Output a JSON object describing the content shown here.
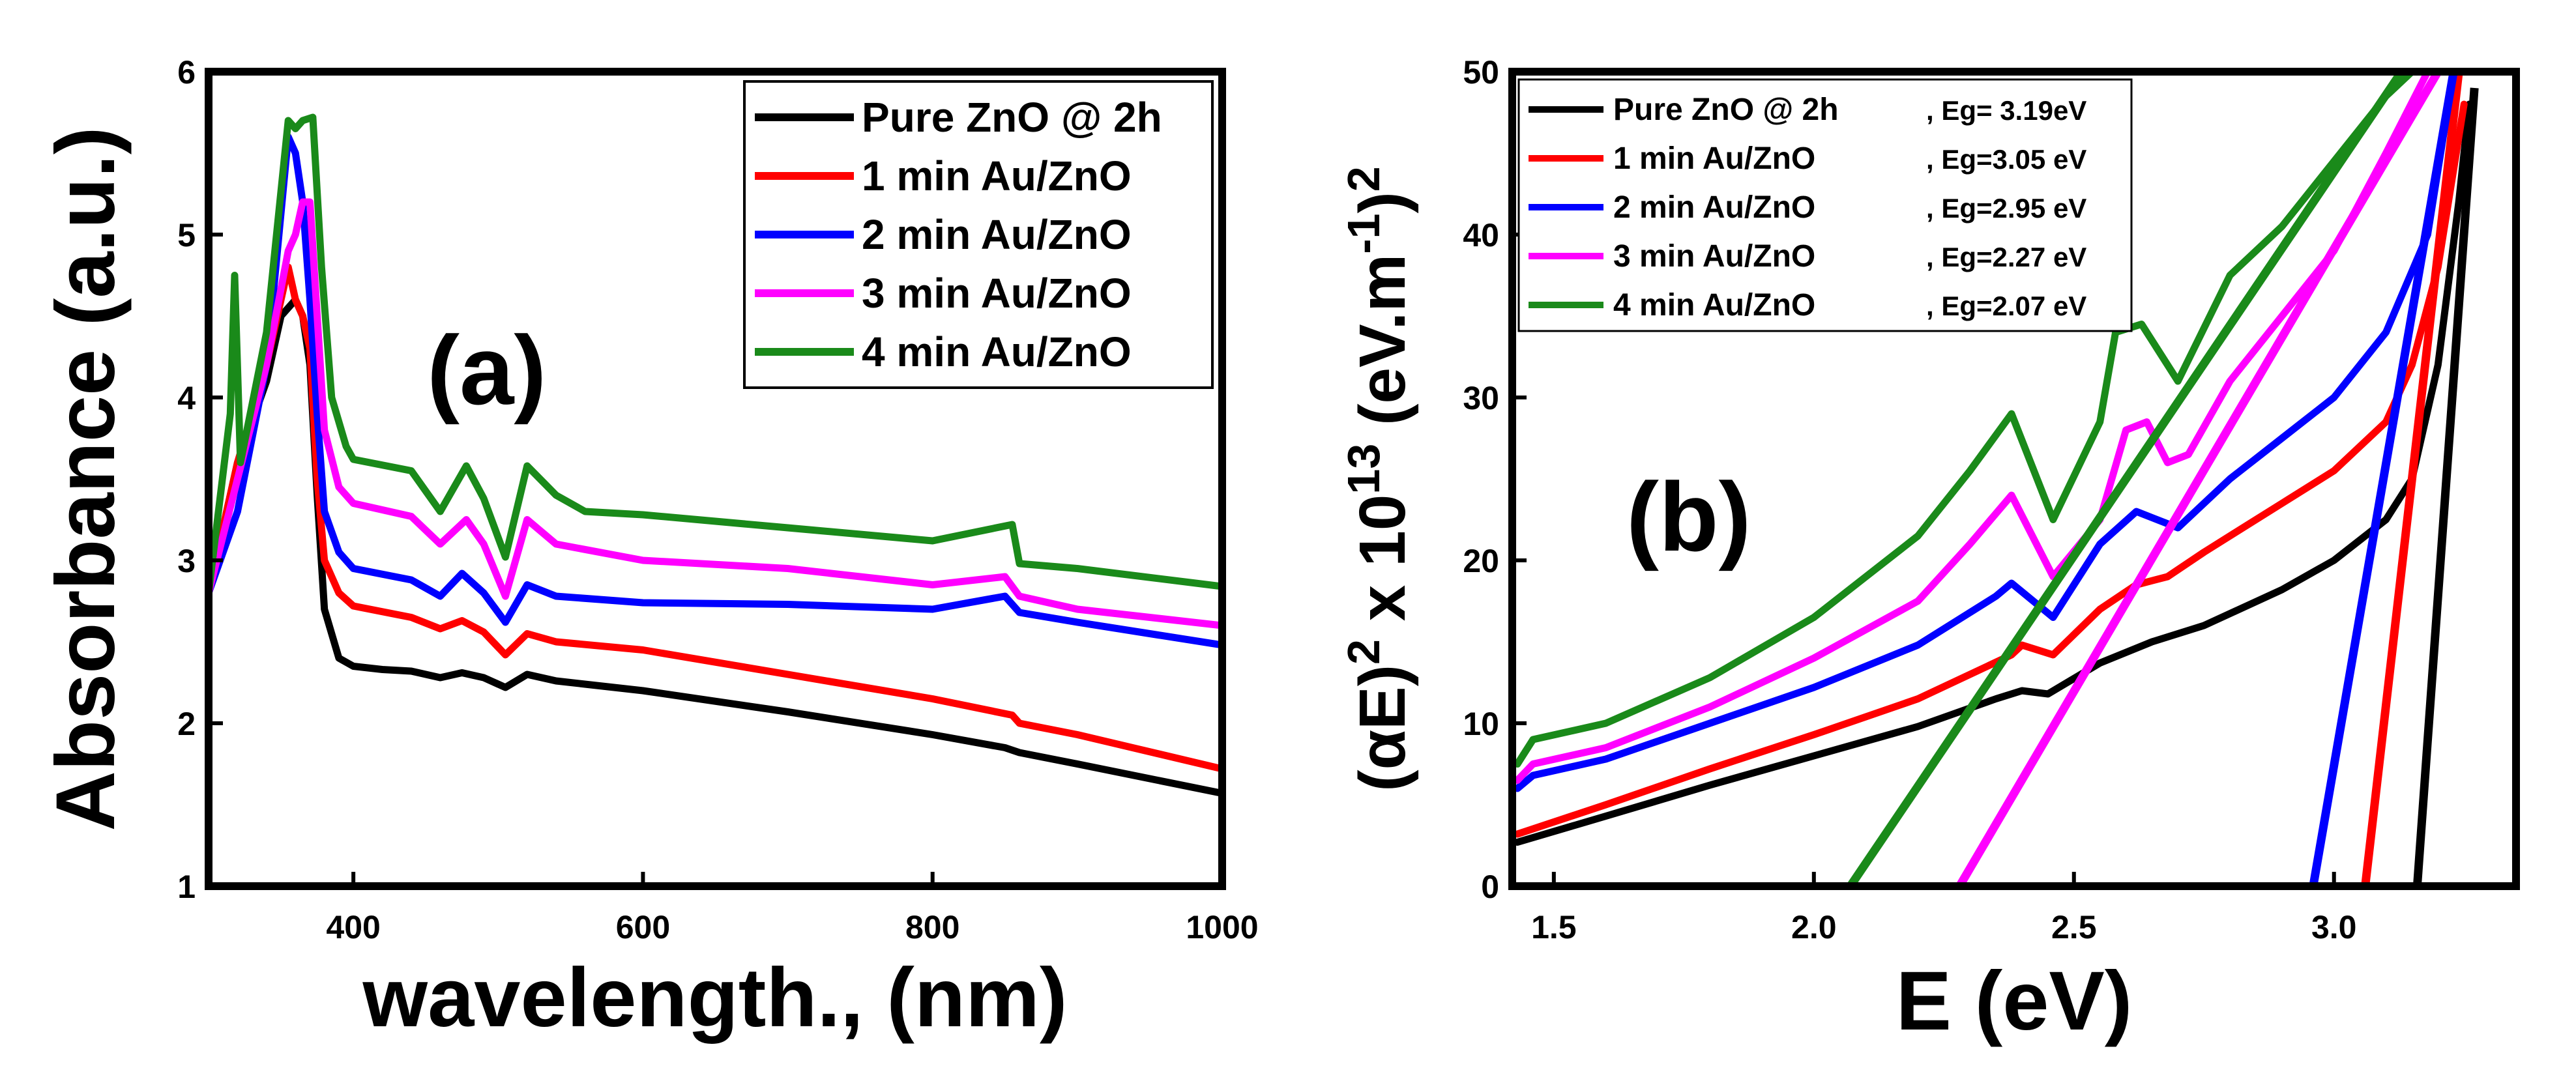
{
  "chart_data": [
    {
      "type": "line",
      "panel_label": "(a)",
      "xlabel": "wavelength., (nm)",
      "ylabel": "Absorbance (a.u.)",
      "xlim": [
        300,
        1000
      ],
      "ylim": [
        1,
        6
      ],
      "xticks": [
        "400",
        "600",
        "800",
        "1000"
      ],
      "yticks": [
        "1",
        "2",
        "3",
        "4",
        "5",
        "6"
      ],
      "legend_position": "top-right",
      "series": [
        {
          "name": "Pure ZnO @ 2h",
          "color": "#000000",
          "points": [
            [
              300,
              2.8
            ],
            [
              320,
              3.6
            ],
            [
              340,
              4.1
            ],
            [
              350,
              4.5
            ],
            [
              360,
              4.6
            ],
            [
              365,
              4.5
            ],
            [
              370,
              4.2
            ],
            [
              375,
              3.4
            ],
            [
              380,
              2.7
            ],
            [
              390,
              2.4
            ],
            [
              400,
              2.35
            ],
            [
              420,
              2.33
            ],
            [
              440,
              2.32
            ],
            [
              460,
              2.28
            ],
            [
              475,
              2.31
            ],
            [
              490,
              2.28
            ],
            [
              505,
              2.22
            ],
            [
              520,
              2.3
            ],
            [
              540,
              2.26
            ],
            [
              600,
              2.2
            ],
            [
              700,
              2.07
            ],
            [
              800,
              1.93
            ],
            [
              850,
              1.85
            ],
            [
              860,
              1.82
            ],
            [
              900,
              1.75
            ],
            [
              1000,
              1.57
            ]
          ]
        },
        {
          "name": "1 min  Au/ZnO",
          "color": "#ff0000",
          "points": [
            [
              300,
              2.8
            ],
            [
              320,
              3.6
            ],
            [
              340,
              4.2
            ],
            [
              355,
              4.8
            ],
            [
              360,
              4.6
            ],
            [
              365,
              4.5
            ],
            [
              370,
              4.3
            ],
            [
              375,
              3.5
            ],
            [
              380,
              3.0
            ],
            [
              390,
              2.8
            ],
            [
              400,
              2.72
            ],
            [
              440,
              2.65
            ],
            [
              460,
              2.58
            ],
            [
              475,
              2.63
            ],
            [
              490,
              2.56
            ],
            [
              505,
              2.42
            ],
            [
              520,
              2.55
            ],
            [
              540,
              2.5
            ],
            [
              600,
              2.45
            ],
            [
              700,
              2.3
            ],
            [
              800,
              2.15
            ],
            [
              855,
              2.05
            ],
            [
              860,
              2.0
            ],
            [
              900,
              1.93
            ],
            [
              1000,
              1.72
            ]
          ]
        },
        {
          "name": "2 min  Au/ZnO",
          "color": "#0000ff",
          "points": [
            [
              300,
              2.8
            ],
            [
              320,
              3.3
            ],
            [
              340,
              4.2
            ],
            [
              355,
              5.6
            ],
            [
              360,
              5.5
            ],
            [
              365,
              5.2
            ],
            [
              370,
              4.6
            ],
            [
              375,
              3.9
            ],
            [
              380,
              3.3
            ],
            [
              390,
              3.05
            ],
            [
              400,
              2.95
            ],
            [
              440,
              2.88
            ],
            [
              460,
              2.78
            ],
            [
              475,
              2.92
            ],
            [
              490,
              2.8
            ],
            [
              505,
              2.62
            ],
            [
              520,
              2.85
            ],
            [
              540,
              2.78
            ],
            [
              600,
              2.74
            ],
            [
              700,
              2.73
            ],
            [
              800,
              2.7
            ],
            [
              850,
              2.78
            ],
            [
              860,
              2.68
            ],
            [
              900,
              2.62
            ],
            [
              1000,
              2.48
            ]
          ]
        },
        {
          "name": "3 min  Au/ZnO",
          "color": "#ff00ff",
          "points": [
            [
              300,
              2.8
            ],
            [
              320,
              3.5
            ],
            [
              340,
              4.2
            ],
            [
              355,
              4.9
            ],
            [
              360,
              5.0
            ],
            [
              365,
              5.2
            ],
            [
              370,
              5.2
            ],
            [
              375,
              4.5
            ],
            [
              380,
              3.8
            ],
            [
              390,
              3.45
            ],
            [
              400,
              3.35
            ],
            [
              440,
              3.27
            ],
            [
              460,
              3.1
            ],
            [
              478,
              3.25
            ],
            [
              490,
              3.1
            ],
            [
              505,
              2.78
            ],
            [
              520,
              3.25
            ],
            [
              540,
              3.1
            ],
            [
              600,
              3.0
            ],
            [
              700,
              2.95
            ],
            [
              800,
              2.85
            ],
            [
              850,
              2.9
            ],
            [
              860,
              2.78
            ],
            [
              900,
              2.7
            ],
            [
              1000,
              2.6
            ]
          ]
        },
        {
          "name": "4 min  Au/ZnO",
          "color": "#1a8a1a",
          "points": [
            [
              300,
              2.8
            ],
            [
              315,
              3.9
            ],
            [
              318,
              4.75
            ],
            [
              322,
              3.6
            ],
            [
              340,
              4.4
            ],
            [
              355,
              5.7
            ],
            [
              360,
              5.65
            ],
            [
              365,
              5.7
            ],
            [
              372,
              5.72
            ],
            [
              378,
              4.8
            ],
            [
              385,
              4.0
            ],
            [
              395,
              3.7
            ],
            [
              400,
              3.62
            ],
            [
              440,
              3.55
            ],
            [
              460,
              3.3
            ],
            [
              478,
              3.58
            ],
            [
              490,
              3.38
            ],
            [
              505,
              3.02
            ],
            [
              520,
              3.58
            ],
            [
              540,
              3.4
            ],
            [
              560,
              3.3
            ],
            [
              600,
              3.28
            ],
            [
              700,
              3.2
            ],
            [
              800,
              3.12
            ],
            [
              855,
              3.22
            ],
            [
              860,
              2.98
            ],
            [
              900,
              2.95
            ],
            [
              1000,
              2.84
            ]
          ]
        }
      ]
    },
    {
      "type": "line",
      "panel_label": "(b)",
      "xlabel": "E (eV)",
      "ylabel": "(αE)2 x 1013 (eV.m-1)2",
      "xlim": [
        1.42,
        3.35
      ],
      "ylim": [
        0,
        50
      ],
      "xticks": [
        "1.5",
        "2.0",
        "2.5",
        "3.0"
      ],
      "yticks": [
        "0",
        "10",
        "20",
        "30",
        "40",
        "50"
      ],
      "legend_position": "top-left",
      "series": [
        {
          "name": "Pure ZnO @ 2h",
          "eg_label": ", Eg= 3.19eV",
          "color": "#000000",
          "points": [
            [
              1.43,
              2.7
            ],
            [
              1.6,
              4.3
            ],
            [
              1.8,
              6.2
            ],
            [
              2.0,
              8.0
            ],
            [
              2.2,
              9.8
            ],
            [
              2.35,
              11.5
            ],
            [
              2.4,
              12.0
            ],
            [
              2.45,
              11.8
            ],
            [
              2.55,
              13.7
            ],
            [
              2.65,
              15.0
            ],
            [
              2.75,
              16.0
            ],
            [
              2.9,
              18.2
            ],
            [
              3.0,
              20.0
            ],
            [
              3.1,
              22.5
            ],
            [
              3.15,
              25.0
            ],
            [
              3.2,
              32.0
            ],
            [
              3.24,
              42.0
            ],
            [
              3.26,
              48.0
            ]
          ],
          "tangent": [
            [
              3.16,
              0
            ],
            [
              3.27,
              49
            ]
          ]
        },
        {
          "name": "1 min Au/ZnO",
          "eg_label": ", Eg=3.05 eV",
          "color": "#ff0000",
          "points": [
            [
              1.43,
              3.2
            ],
            [
              1.6,
              5.0
            ],
            [
              1.8,
              7.2
            ],
            [
              2.0,
              9.3
            ],
            [
              2.2,
              11.5
            ],
            [
              2.38,
              14.2
            ],
            [
              2.4,
              14.8
            ],
            [
              2.46,
              14.2
            ],
            [
              2.55,
              17.0
            ],
            [
              2.62,
              18.5
            ],
            [
              2.68,
              19.0
            ],
            [
              2.75,
              20.5
            ],
            [
              2.9,
              23.5
            ],
            [
              3.0,
              25.5
            ],
            [
              3.1,
              28.5
            ],
            [
              3.15,
              32.0
            ],
            [
              3.2,
              38.0
            ],
            [
              3.25,
              48.0
            ]
          ],
          "tangent": [
            [
              3.06,
              0
            ],
            [
              3.24,
              50
            ]
          ]
        },
        {
          "name": "2 min Au/ZnO",
          "eg_label": ", Eg=2.95 eV",
          "color": "#0000ff",
          "points": [
            [
              1.43,
              6.0
            ],
            [
              1.46,
              6.8
            ],
            [
              1.6,
              7.8
            ],
            [
              1.8,
              10.0
            ],
            [
              2.0,
              12.2
            ],
            [
              2.2,
              14.8
            ],
            [
              2.35,
              17.8
            ],
            [
              2.38,
              18.6
            ],
            [
              2.46,
              16.5
            ],
            [
              2.55,
              21.0
            ],
            [
              2.62,
              23.0
            ],
            [
              2.7,
              22.0
            ],
            [
              2.8,
              25.0
            ],
            [
              2.9,
              27.5
            ],
            [
              3.0,
              30.0
            ],
            [
              3.1,
              34.0
            ],
            [
              3.18,
              40.0
            ],
            [
              3.23,
              50.0
            ]
          ],
          "tangent": [
            [
              2.96,
              0
            ],
            [
              3.23,
              50
            ]
          ]
        },
        {
          "name": "3 min Au/ZnO",
          "eg_label": ", Eg=2.27 eV",
          "color": "#ff00ff",
          "points": [
            [
              1.43,
              6.5
            ],
            [
              1.46,
              7.5
            ],
            [
              1.6,
              8.5
            ],
            [
              1.8,
              11.0
            ],
            [
              2.0,
              14.0
            ],
            [
              2.2,
              17.5
            ],
            [
              2.3,
              21.0
            ],
            [
              2.38,
              24.0
            ],
            [
              2.46,
              19.0
            ],
            [
              2.55,
              22.5
            ],
            [
              2.6,
              28.0
            ],
            [
              2.64,
              28.5
            ],
            [
              2.68,
              26.0
            ],
            [
              2.72,
              26.5
            ],
            [
              2.8,
              31.0
            ],
            [
              2.9,
              35.0
            ],
            [
              3.0,
              39.0
            ],
            [
              3.1,
              45.0
            ],
            [
              3.18,
              50.0
            ]
          ],
          "tangent": [
            [
              2.28,
              0
            ],
            [
              3.2,
              50
            ]
          ]
        },
        {
          "name": "4 min Au/ZnO",
          "eg_label": ", Eg=2.07 eV",
          "color": "#1a8a1a",
          "points": [
            [
              1.43,
              7.5
            ],
            [
              1.46,
              9.0
            ],
            [
              1.6,
              10.0
            ],
            [
              1.8,
              12.8
            ],
            [
              2.0,
              16.5
            ],
            [
              2.2,
              21.5
            ],
            [
              2.3,
              25.5
            ],
            [
              2.38,
              29.0
            ],
            [
              2.46,
              22.5
            ],
            [
              2.55,
              28.5
            ],
            [
              2.58,
              34.0
            ],
            [
              2.63,
              34.5
            ],
            [
              2.7,
              31.0
            ],
            [
              2.8,
              37.5
            ],
            [
              2.9,
              40.5
            ],
            [
              3.0,
              44.5
            ],
            [
              3.1,
              48.5
            ],
            [
              3.15,
              50.0
            ]
          ],
          "tangent": [
            [
              2.07,
              0
            ],
            [
              3.13,
              50
            ]
          ]
        }
      ]
    }
  ]
}
